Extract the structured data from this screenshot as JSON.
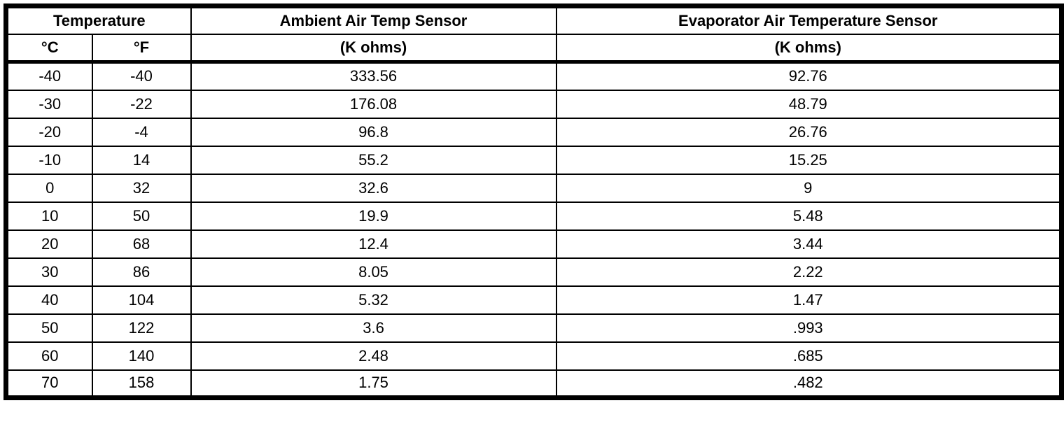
{
  "table": {
    "headers": {
      "temperature": "Temperature",
      "ambient_sensor": "Ambient Air Temp Sensor",
      "evaporator_sensor": "Evaporator Air Temperature Sensor",
      "celsius": "°C",
      "fahrenheit": "°F",
      "ambient_units": "(K ohms)",
      "evaporator_units": "(K ohms)"
    },
    "rows": [
      {
        "c": "-40",
        "f": "-40",
        "ambient": "333.56",
        "evaporator": "92.76"
      },
      {
        "c": "-30",
        "f": "-22",
        "ambient": "176.08",
        "evaporator": "48.79"
      },
      {
        "c": "-20",
        "f": "-4",
        "ambient": "96.8",
        "evaporator": "26.76"
      },
      {
        "c": "-10",
        "f": "14",
        "ambient": "55.2",
        "evaporator": "15.25"
      },
      {
        "c": "0",
        "f": "32",
        "ambient": "32.6",
        "evaporator": "9"
      },
      {
        "c": "10",
        "f": "50",
        "ambient": "19.9",
        "evaporator": "5.48"
      },
      {
        "c": "20",
        "f": "68",
        "ambient": "12.4",
        "evaporator": "3.44"
      },
      {
        "c": "30",
        "f": "86",
        "ambient": "8.05",
        "evaporator": "2.22"
      },
      {
        "c": "40",
        "f": "104",
        "ambient": "5.32",
        "evaporator": "1.47"
      },
      {
        "c": "50",
        "f": "122",
        "ambient": "3.6",
        "evaporator": ".993"
      },
      {
        "c": "60",
        "f": "140",
        "ambient": "2.48",
        "evaporator": ".685"
      },
      {
        "c": "70",
        "f": "158",
        "ambient": "1.75",
        "evaporator": ".482"
      }
    ]
  },
  "colors": {
    "border": "#000000",
    "background": "#ffffff",
    "text": "#000000"
  }
}
